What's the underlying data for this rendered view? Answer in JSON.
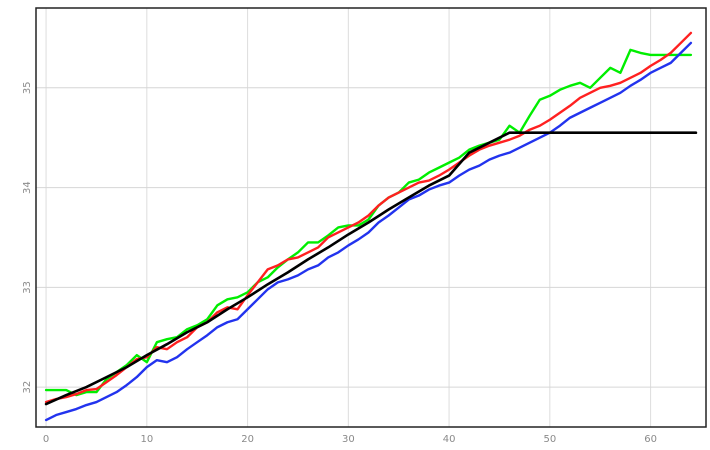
{
  "chart_data": {
    "type": "line",
    "title": "",
    "xlabel": "",
    "ylabel": "",
    "xlim": [
      -1,
      65.5
    ],
    "ylim": [
      31.6,
      35.8
    ],
    "xticks": [
      0,
      10,
      20,
      30,
      40,
      50,
      60
    ],
    "yticks": [
      32,
      33,
      34,
      35
    ],
    "grid": true,
    "series": [
      {
        "color": "#00ee00",
        "x": [
          0,
          1,
          2,
          3,
          4,
          5,
          6,
          7,
          8,
          9,
          10,
          11,
          12,
          13,
          14,
          15,
          16,
          17,
          18,
          19,
          20,
          21,
          22,
          23,
          24,
          25,
          26,
          27,
          28,
          29,
          30,
          31,
          32,
          33,
          34,
          35,
          36,
          37,
          38,
          39,
          40,
          41,
          42,
          43,
          44,
          45,
          46,
          47,
          48,
          49,
          50,
          51,
          52,
          53,
          54,
          55,
          56,
          57,
          58,
          59,
          60,
          61,
          62,
          63,
          64
        ],
        "y": [
          31.97,
          31.97,
          31.97,
          31.92,
          31.95,
          31.95,
          32.08,
          32.15,
          32.22,
          32.32,
          32.25,
          32.45,
          32.48,
          32.5,
          32.58,
          32.62,
          32.68,
          32.82,
          32.88,
          32.9,
          32.95,
          33.05,
          33.1,
          33.2,
          33.28,
          33.35,
          33.45,
          33.45,
          33.52,
          33.6,
          33.62,
          33.62,
          33.68,
          33.82,
          33.9,
          33.95,
          34.05,
          34.08,
          34.15,
          34.2,
          34.25,
          34.3,
          34.38,
          34.42,
          34.45,
          34.48,
          34.62,
          34.55,
          34.72,
          34.88,
          34.92,
          34.98,
          35.02,
          35.05,
          35.0,
          35.1,
          35.2,
          35.15,
          35.38,
          35.35,
          35.33,
          35.33,
          35.33,
          35.33,
          35.33
        ]
      },
      {
        "color": "#ff2020",
        "x": [
          0,
          1,
          2,
          3,
          4,
          5,
          6,
          7,
          8,
          9,
          10,
          11,
          12,
          13,
          14,
          15,
          16,
          17,
          18,
          19,
          20,
          21,
          22,
          23,
          24,
          25,
          26,
          27,
          28,
          29,
          30,
          31,
          32,
          33,
          34,
          35,
          36,
          37,
          38,
          39,
          40,
          41,
          42,
          43,
          44,
          45,
          46,
          47,
          48,
          49,
          50,
          51,
          52,
          53,
          54,
          55,
          56,
          57,
          58,
          59,
          60,
          61,
          62,
          63,
          64
        ],
        "y": [
          31.85,
          31.88,
          31.9,
          31.93,
          31.97,
          31.98,
          32.05,
          32.12,
          32.2,
          32.28,
          32.3,
          32.4,
          32.38,
          32.45,
          32.5,
          32.6,
          32.65,
          32.75,
          32.8,
          32.78,
          32.92,
          33.05,
          33.18,
          33.22,
          33.28,
          33.3,
          33.35,
          33.4,
          33.5,
          33.55,
          33.6,
          33.65,
          33.72,
          33.82,
          33.9,
          33.95,
          34.0,
          34.05,
          34.07,
          34.12,
          34.18,
          34.25,
          34.32,
          34.38,
          34.42,
          34.45,
          34.48,
          34.52,
          34.58,
          34.62,
          34.68,
          34.75,
          34.82,
          34.9,
          34.95,
          35.0,
          35.02,
          35.05,
          35.1,
          35.15,
          35.22,
          35.28,
          35.35,
          35.45,
          35.55
        ]
      },
      {
        "color": "#2233ee",
        "x": [
          0,
          1,
          2,
          3,
          4,
          5,
          6,
          7,
          8,
          9,
          10,
          11,
          12,
          13,
          14,
          15,
          16,
          17,
          18,
          19,
          20,
          21,
          22,
          23,
          24,
          25,
          26,
          27,
          28,
          29,
          30,
          31,
          32,
          33,
          34,
          35,
          36,
          37,
          38,
          39,
          40,
          41,
          42,
          43,
          44,
          45,
          46,
          47,
          48,
          49,
          50,
          51,
          52,
          53,
          54,
          55,
          56,
          57,
          58,
          59,
          60,
          61,
          62,
          63,
          64
        ],
        "y": [
          31.67,
          31.72,
          31.75,
          31.78,
          31.82,
          31.85,
          31.9,
          31.95,
          32.02,
          32.1,
          32.2,
          32.27,
          32.25,
          32.3,
          32.38,
          32.45,
          32.52,
          32.6,
          32.65,
          32.68,
          32.78,
          32.88,
          32.98,
          33.05,
          33.08,
          33.12,
          33.18,
          33.22,
          33.3,
          33.35,
          33.42,
          33.48,
          33.55,
          33.65,
          33.72,
          33.8,
          33.88,
          33.92,
          33.98,
          34.02,
          34.05,
          34.12,
          34.18,
          34.22,
          34.28,
          34.32,
          34.35,
          34.4,
          34.45,
          34.5,
          34.55,
          34.62,
          34.7,
          34.75,
          34.8,
          34.85,
          34.9,
          34.95,
          35.02,
          35.08,
          35.15,
          35.2,
          35.25,
          35.35,
          35.45
        ]
      },
      {
        "color": "#000000",
        "x": [
          0,
          2,
          4,
          6,
          8,
          10,
          12,
          14,
          16,
          18,
          20,
          22,
          24,
          26,
          28,
          30,
          32,
          34,
          36,
          38,
          40,
          42,
          44,
          46,
          48,
          50,
          55,
          60,
          64.5
        ],
        "y": [
          31.83,
          31.92,
          32.0,
          32.1,
          32.2,
          32.32,
          32.43,
          32.55,
          32.65,
          32.78,
          32.9,
          33.03,
          33.15,
          33.28,
          33.4,
          33.53,
          33.65,
          33.78,
          33.9,
          34.02,
          34.12,
          34.35,
          34.45,
          34.55,
          34.55,
          34.55,
          34.55,
          34.55,
          34.55
        ]
      }
    ]
  }
}
